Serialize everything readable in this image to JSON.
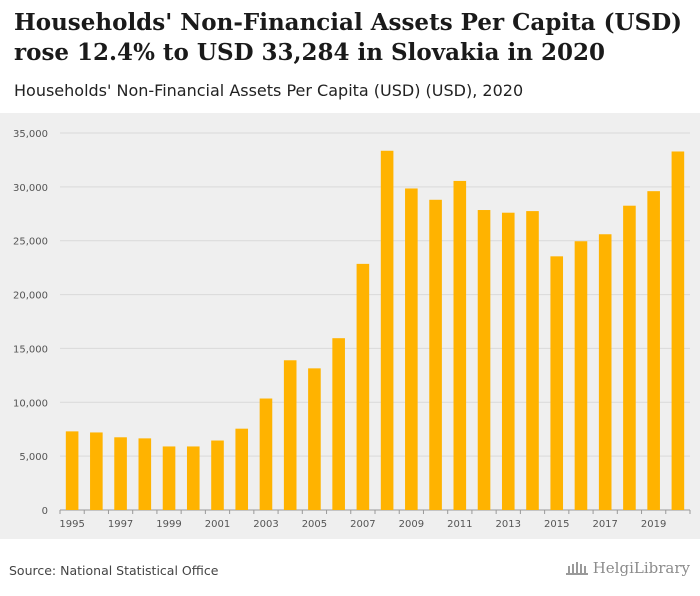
{
  "header": {
    "title": "Households' Non-Financial Assets Per Capita (USD) rose 12.4% to USD 33,284 in Slovakia in 2020",
    "subtitle": "Households' Non-Financial Assets Per Capita (USD) (USD), 2020"
  },
  "footer": {
    "source": "Source: National Statistical Office",
    "logo_text": "HelgiLibrary"
  },
  "colors": {
    "bar": "#FFB300",
    "grid": "#d9d9d9",
    "plot_bg": "#efefef"
  },
  "chart_data": {
    "type": "bar",
    "title": "Households' Non-Financial Assets Per Capita (USD) (USD), 2020",
    "xlabel": "",
    "ylabel": "",
    "ylim": [
      0,
      35000
    ],
    "yticks": [
      0,
      5000,
      10000,
      15000,
      20000,
      25000,
      30000,
      35000
    ],
    "ytick_labels": [
      "0",
      "5,000",
      "10,000",
      "15,000",
      "20,000",
      "25,000",
      "30,000",
      "35,000"
    ],
    "categories": [
      "1995",
      "1996",
      "1997",
      "1998",
      "1999",
      "2000",
      "2001",
      "2002",
      "2003",
      "2004",
      "2005",
      "2006",
      "2007",
      "2008",
      "2009",
      "2010",
      "2011",
      "2012",
      "2013",
      "2014",
      "2015",
      "2016",
      "2017",
      "2018",
      "2019",
      "2020"
    ],
    "xtick_labels": [
      "1995",
      "1997",
      "1999",
      "2001",
      "2003",
      "2005",
      "2007",
      "2009",
      "2011",
      "2013",
      "2015",
      "2017",
      "2019"
    ],
    "values": [
      7300,
      7200,
      6750,
      6650,
      5900,
      5900,
      6450,
      7550,
      10350,
      13900,
      13150,
      15950,
      22850,
      33350,
      29850,
      28800,
      30550,
      27850,
      27600,
      27750,
      23550,
      24950,
      25600,
      28250,
      29600,
      33284
    ],
    "grid": true,
    "legend": "none"
  }
}
